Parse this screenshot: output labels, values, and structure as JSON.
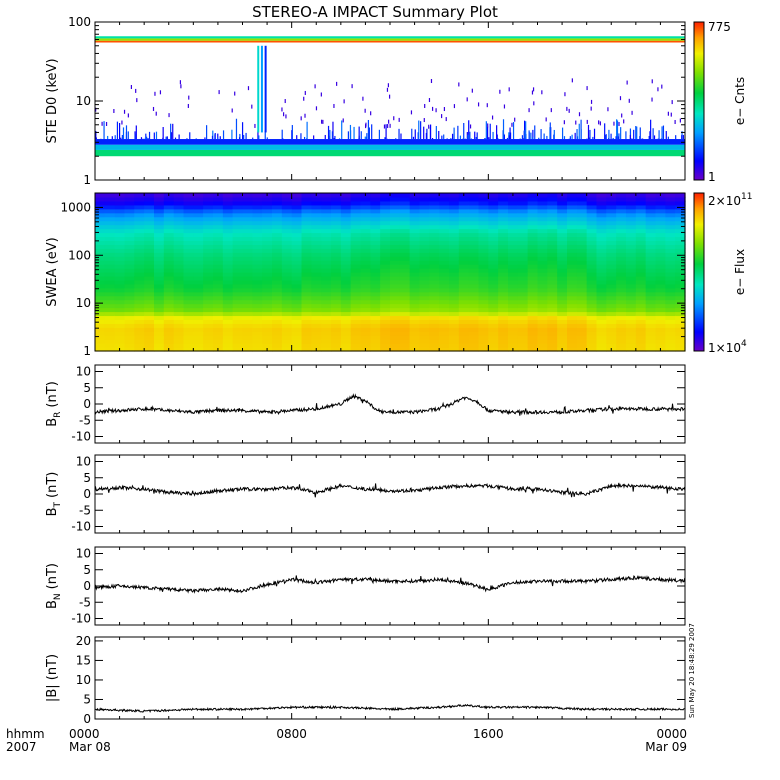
{
  "title": "STEREO-A IMPACT Summary Plot",
  "time_axis": {
    "corner_top": "hhmm",
    "corner_bottom": "2007",
    "ticks": [
      {
        "x": 0,
        "top": "0000",
        "bottom": "Mar 08"
      },
      {
        "x": 8,
        "top": "0800",
        "bottom": ""
      },
      {
        "x": 16,
        "top": "1600",
        "bottom": ""
      },
      {
        "x": 24,
        "top": "0000",
        "bottom": "Mar 09"
      }
    ],
    "range_hours": [
      0,
      24
    ]
  },
  "timestamp": "Sun May 20 18:48:29 2007",
  "colors": {
    "colormap": [
      "#6a00c8",
      "#0000ff",
      "#00a0ff",
      "#00e6c0",
      "#00d040",
      "#80e000",
      "#f0f000",
      "#ffa000",
      "#ff2000"
    ],
    "line": "#000000",
    "axis": "#000000",
    "background": "#ffffff"
  },
  "chart_data": [
    {
      "type": "heatmap",
      "name": "ste",
      "ylabel": "STE D0 (keV)",
      "yscale": "log",
      "ylim": [
        1,
        100
      ],
      "yticks": [
        "1",
        "10",
        "100"
      ],
      "colorbar": {
        "label": "e− Cnts",
        "max": "775",
        "min": "1"
      },
      "bands": [
        {
          "y_keV": [
            2,
            2.4
          ],
          "level": 0.45
        },
        {
          "y_keV": [
            2.4,
            2.8
          ],
          "level": 0.3
        },
        {
          "y_keV": [
            2.8,
            3.3
          ],
          "level": 0.15
        },
        {
          "y_keV": [
            55,
            58
          ],
          "level": 0.95
        },
        {
          "y_keV": [
            58,
            62
          ],
          "level": 0.65
        },
        {
          "y_keV": [
            62,
            66
          ],
          "level": 0.4
        }
      ]
    },
    {
      "type": "heatmap",
      "name": "swea",
      "ylabel": "SWEA (eV)",
      "yscale": "log",
      "ylim": [
        1,
        2000
      ],
      "yticks": [
        "1",
        "10",
        "100",
        "1000"
      ],
      "colorbar": {
        "label": "e− Flux",
        "max_base": "2×10",
        "max_exp": "11",
        "min_base": "1×10",
        "min_exp": "4"
      },
      "profile_eV_level": [
        [
          1,
          0.78
        ],
        [
          3,
          0.8
        ],
        [
          5,
          0.75
        ],
        [
          7,
          0.62
        ],
        [
          20,
          0.52
        ],
        [
          100,
          0.45
        ],
        [
          300,
          0.38
        ],
        [
          500,
          0.3
        ],
        [
          800,
          0.22
        ],
        [
          1200,
          0.12
        ],
        [
          2000,
          0.05
        ]
      ]
    },
    {
      "type": "line",
      "name": "BR",
      "ylabel": "B",
      "ylabel_sub": "R",
      "ylabel_unit": "(nT)",
      "ylim": [
        -12,
        12
      ],
      "yticks": [
        -10,
        -5,
        0,
        5,
        10
      ],
      "x_hours": [
        0,
        1,
        2,
        3,
        4,
        5,
        6,
        7,
        8,
        9,
        10,
        10.5,
        11,
        11.5,
        12,
        13,
        14,
        14.5,
        15,
        15.5,
        16,
        17,
        18,
        19,
        20,
        21,
        22,
        23,
        24
      ],
      "y": [
        -2.5,
        -2,
        -1.5,
        -2,
        -2.5,
        -2,
        -2,
        -2.5,
        -2,
        -1.5,
        0,
        2.5,
        1,
        -2,
        -2.5,
        -2.5,
        -1.5,
        0,
        2,
        1,
        -2,
        -2.5,
        -2.5,
        -2.5,
        -2,
        -1.5,
        -1.5,
        -1.5,
        -1.5
      ]
    },
    {
      "type": "line",
      "name": "BT",
      "ylabel": "B",
      "ylabel_sub": "T",
      "ylabel_unit": "(nT)",
      "ylim": [
        -12,
        12
      ],
      "yticks": [
        -10,
        -5,
        0,
        5,
        10
      ],
      "x_hours": [
        0,
        1,
        2,
        3,
        4,
        5,
        6,
        7,
        8,
        9,
        10,
        11,
        12,
        13,
        14,
        15,
        16,
        17,
        18,
        19,
        20,
        21,
        22,
        23,
        24
      ],
      "y": [
        1.5,
        2,
        1.5,
        0.5,
        0,
        1,
        1.5,
        1.5,
        2,
        0.5,
        2.5,
        1.5,
        1,
        1,
        2,
        2.5,
        2.5,
        1.5,
        1.5,
        0.5,
        0,
        2.5,
        2.5,
        2,
        1.5
      ]
    },
    {
      "type": "line",
      "name": "BN",
      "ylabel": "B",
      "ylabel_sub": "N",
      "ylabel_unit": "(nT)",
      "ylim": [
        -12,
        12
      ],
      "yticks": [
        -10,
        -5,
        0,
        5,
        10
      ],
      "x_hours": [
        0,
        1,
        2,
        3,
        4,
        5,
        6,
        7,
        8,
        9,
        10,
        11,
        12,
        13,
        14,
        15,
        16,
        17,
        18,
        19,
        20,
        21,
        22,
        23,
        24
      ],
      "y": [
        -0.5,
        0,
        -0.5,
        -1,
        -1.5,
        -1,
        -1.5,
        0.5,
        2,
        1,
        2,
        2,
        1.5,
        1.5,
        2,
        1,
        -1,
        1,
        1.5,
        1.5,
        1.5,
        2,
        2.5,
        2,
        1.5
      ]
    },
    {
      "type": "line",
      "name": "Bmag",
      "ylabel": "|B| (nT)",
      "ylim": [
        0,
        21
      ],
      "yticks": [
        0,
        5,
        10,
        15,
        20
      ],
      "x_hours": [
        0,
        2,
        4,
        6,
        8,
        10,
        12,
        14,
        15,
        16,
        18,
        20,
        22,
        24
      ],
      "y": [
        2.5,
        2,
        2.5,
        2.5,
        3,
        3,
        2.5,
        3,
        3.5,
        3,
        3,
        2.5,
        2.5,
        2.5
      ]
    }
  ]
}
